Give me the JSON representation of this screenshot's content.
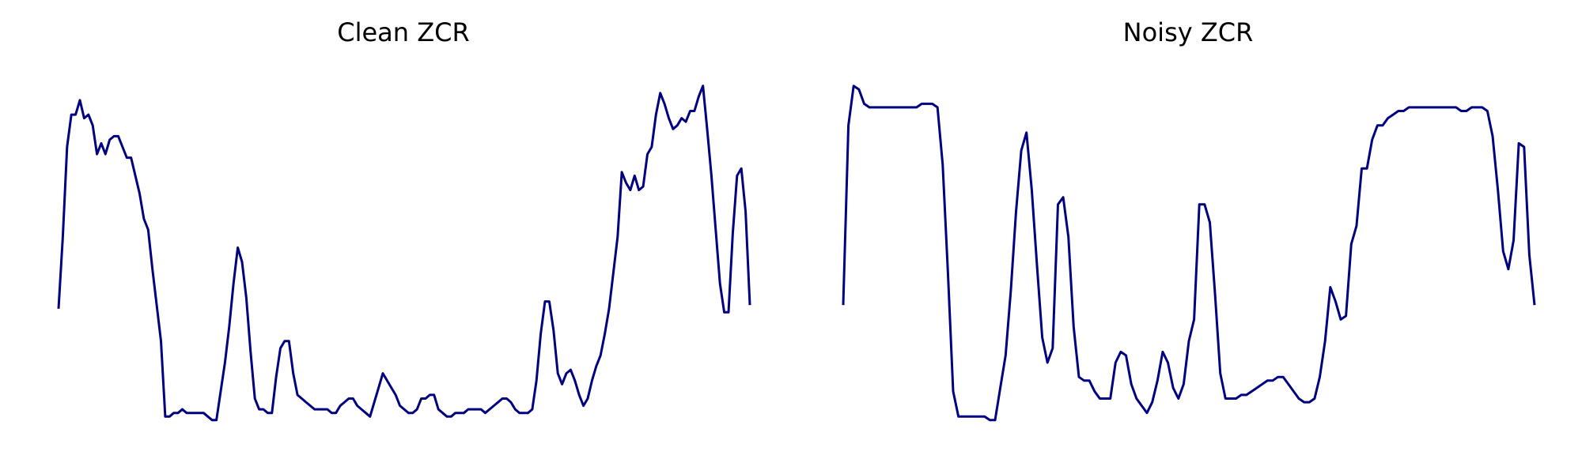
{
  "style": {
    "line_color": "#000080",
    "background": "#ffffff"
  },
  "chart_data": [
    {
      "type": "line",
      "title": "Clean ZCR",
      "xlabel": "",
      "ylabel": "",
      "axes_visible": false,
      "grid": false,
      "ylim": [
        0,
        1
      ],
      "series": [
        {
          "values": [
            0.35,
            0.55,
            0.8,
            0.89,
            0.89,
            0.93,
            0.88,
            0.89,
            0.86,
            0.78,
            0.81,
            0.78,
            0.82,
            0.83,
            0.83,
            0.8,
            0.77,
            0.77,
            0.72,
            0.67,
            0.6,
            0.57,
            0.46,
            0.36,
            0.26,
            0.05,
            0.05,
            0.06,
            0.06,
            0.07,
            0.06,
            0.06,
            0.06,
            0.06,
            0.06,
            0.05,
            0.04,
            0.04,
            0.12,
            0.2,
            0.3,
            0.42,
            0.52,
            0.48,
            0.38,
            0.23,
            0.1,
            0.07,
            0.07,
            0.06,
            0.06,
            0.16,
            0.24,
            0.26,
            0.26,
            0.17,
            0.11,
            0.1,
            0.09,
            0.08,
            0.07,
            0.07,
            0.07,
            0.07,
            0.06,
            0.06,
            0.08,
            0.09,
            0.1,
            0.1,
            0.08,
            0.07,
            0.06,
            0.05,
            0.09,
            0.13,
            0.17,
            0.15,
            0.13,
            0.11,
            0.08,
            0.07,
            0.06,
            0.06,
            0.07,
            0.1,
            0.1,
            0.11,
            0.11,
            0.07,
            0.06,
            0.05,
            0.05,
            0.06,
            0.06,
            0.06,
            0.07,
            0.07,
            0.07,
            0.07,
            0.06,
            0.07,
            0.08,
            0.09,
            0.1,
            0.1,
            0.09,
            0.07,
            0.06,
            0.06,
            0.06,
            0.07,
            0.15,
            0.28,
            0.37,
            0.37,
            0.29,
            0.17,
            0.14,
            0.17,
            0.18,
            0.15,
            0.11,
            0.08,
            0.1,
            0.15,
            0.19,
            0.22,
            0.28,
            0.35,
            0.45,
            0.55,
            0.73,
            0.7,
            0.68,
            0.72,
            0.68,
            0.69,
            0.78,
            0.8,
            0.89,
            0.95,
            0.92,
            0.88,
            0.85,
            0.86,
            0.88,
            0.87,
            0.9,
            0.9,
            0.94,
            0.97,
            0.85,
            0.72,
            0.57,
            0.42,
            0.34,
            0.34,
            0.56,
            0.72,
            0.74,
            0.62,
            0.36
          ]
        }
      ]
    },
    {
      "type": "line",
      "title": "Noisy ZCR",
      "xlabel": "",
      "ylabel": "",
      "axes_visible": false,
      "grid": false,
      "ylim": [
        0,
        1
      ],
      "series": [
        {
          "values": [
            0.36,
            0.86,
            0.97,
            0.96,
            0.92,
            0.91,
            0.91,
            0.91,
            0.91,
            0.91,
            0.91,
            0.91,
            0.91,
            0.91,
            0.91,
            0.92,
            0.92,
            0.92,
            0.91,
            0.75,
            0.45,
            0.12,
            0.05,
            0.05,
            0.05,
            0.05,
            0.05,
            0.05,
            0.04,
            0.04,
            0.13,
            0.22,
            0.4,
            0.62,
            0.79,
            0.84,
            0.68,
            0.47,
            0.27,
            0.2,
            0.24,
            0.64,
            0.66,
            0.55,
            0.3,
            0.16,
            0.15,
            0.15,
            0.12,
            0.1,
            0.1,
            0.1,
            0.2,
            0.23,
            0.22,
            0.14,
            0.1,
            0.08,
            0.06,
            0.09,
            0.15,
            0.23,
            0.2,
            0.13,
            0.1,
            0.14,
            0.26,
            0.32,
            0.64,
            0.64,
            0.59,
            0.39,
            0.17,
            0.1,
            0.1,
            0.1,
            0.11,
            0.11,
            0.12,
            0.13,
            0.14,
            0.15,
            0.15,
            0.16,
            0.16,
            0.14,
            0.12,
            0.1,
            0.09,
            0.09,
            0.1,
            0.16,
            0.26,
            0.41,
            0.37,
            0.32,
            0.33,
            0.53,
            0.58,
            0.74,
            0.74,
            0.82,
            0.86,
            0.86,
            0.88,
            0.89,
            0.9,
            0.9,
            0.91,
            0.91,
            0.91,
            0.91,
            0.91,
            0.91,
            0.91,
            0.91,
            0.91,
            0.91,
            0.9,
            0.9,
            0.91,
            0.91,
            0.91,
            0.9,
            0.83,
            0.68,
            0.51,
            0.46,
            0.54,
            0.81,
            0.8,
            0.5,
            0.36
          ]
        }
      ]
    }
  ]
}
